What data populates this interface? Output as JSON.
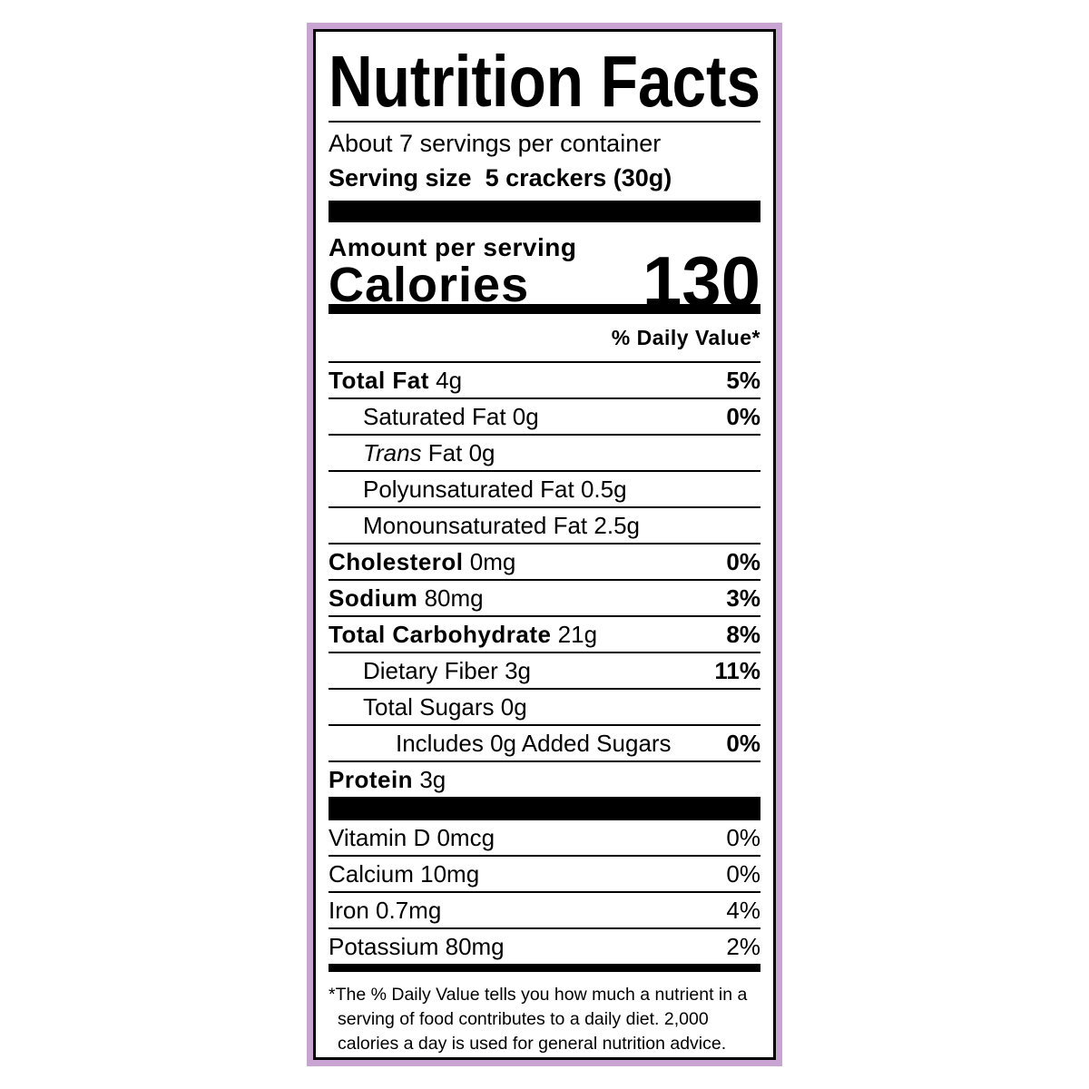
{
  "label": {
    "title": "Nutrition Facts",
    "servings_per_container": "About 7 servings per container",
    "serving_size_label": "Serving size",
    "serving_size_value": "5 crackers (30g)",
    "amount_per_serving": "Amount per serving",
    "calories_label": "Calories",
    "calories_value": "130",
    "daily_value_header": "% Daily Value*",
    "nutrients": [
      {
        "name": "Total Fat",
        "amount": "4g",
        "dv": "5%",
        "bold": true,
        "indent": 0
      },
      {
        "name": "Saturated Fat",
        "amount": "0g",
        "dv": "0%",
        "bold": false,
        "indent": 1
      },
      {
        "name": "Trans",
        "name_suffix": "Fat",
        "amount": "0g",
        "dv": "",
        "bold": false,
        "indent": 1,
        "italic_prefix": true
      },
      {
        "name": "Polyunsaturated Fat",
        "amount": "0.5g",
        "dv": "",
        "bold": false,
        "indent": 1
      },
      {
        "name": "Monounsaturated Fat",
        "amount": "2.5g",
        "dv": "",
        "bold": false,
        "indent": 1
      },
      {
        "name": "Cholesterol",
        "amount": "0mg",
        "dv": "0%",
        "bold": true,
        "indent": 0
      },
      {
        "name": "Sodium",
        "amount": "80mg",
        "dv": "3%",
        "bold": true,
        "indent": 0
      },
      {
        "name": "Total Carbohydrate",
        "amount": "21g",
        "dv": "8%",
        "bold": true,
        "indent": 0
      },
      {
        "name": "Dietary Fiber",
        "amount": "3g",
        "dv": "11%",
        "bold": false,
        "indent": 1
      },
      {
        "name": "Total Sugars",
        "amount": "0g",
        "dv": "",
        "bold": false,
        "indent": 1
      },
      {
        "name": "Includes 0g Added Sugars",
        "amount": "",
        "dv": "0%",
        "bold": false,
        "indent": 2
      },
      {
        "name": "Protein",
        "amount": "3g",
        "dv": "",
        "bold": true,
        "indent": 0
      }
    ],
    "vitamins": [
      {
        "name": "Vitamin D 0mcg",
        "dv": "0%"
      },
      {
        "name": "Calcium 10mg",
        "dv": "0%"
      },
      {
        "name": "Iron 0.7mg",
        "dv": "4%"
      },
      {
        "name": "Potassium 80mg",
        "dv": "2%"
      }
    ],
    "footnote": [
      "*The % Daily Value tells you how much a nutrient in a",
      "serving of food contributes to a daily diet. 2,000",
      "calories a day is used for general nutrition advice."
    ]
  },
  "colors": {
    "border_accent": "#c9a3d1",
    "ink": "#000000"
  }
}
